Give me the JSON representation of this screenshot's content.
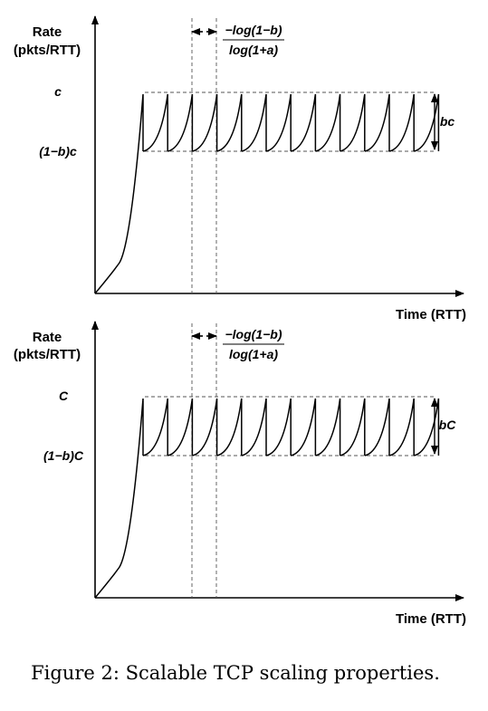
{
  "figure": {
    "caption": "Figure 2: Scalable TCP scaling properties.",
    "panels": [
      {
        "y_label_line1": "Rate",
        "y_label_line2": "(pkts/RTT)",
        "x_label": "Time (RTT)",
        "interval_numerator": "−log(1−b)",
        "interval_denominator": "log(1+a)",
        "upper_level_label": "c",
        "lower_level_label": "(1−b)c",
        "drop_label": "bc",
        "num_sawteeth": 12
      },
      {
        "y_label_line1": "Rate",
        "y_label_line2": "(pkts/RTT)",
        "x_label": "Time (RTT)",
        "interval_numerator": "−log(1−b)",
        "interval_denominator": "log(1+a)",
        "upper_level_label": "C",
        "lower_level_label": "(1−b)C",
        "drop_label": "bC",
        "num_sawteeth": 12
      }
    ]
  }
}
